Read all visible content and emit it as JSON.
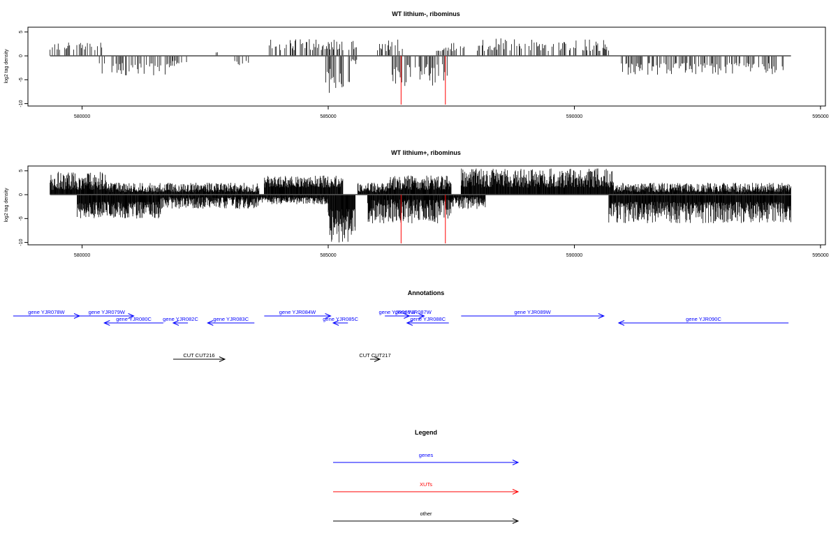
{
  "colors": {
    "gene": "#0000ff",
    "xut": "#ff0000",
    "other": "#000000",
    "bars": "#000000"
  },
  "chart_data": [
    {
      "type": "bar",
      "title": "WT lithium-, ribominus",
      "ylabel": "log2 tag density",
      "xlim": [
        578900,
        595100
      ],
      "ylim": [
        -10.5,
        6
      ],
      "xticks": [
        580000,
        585000,
        590000,
        595000
      ],
      "yticks": [
        5,
        0,
        -5,
        -10
      ],
      "xut_positions": [
        586480,
        587380
      ],
      "series": [
        {
          "strand": "plus",
          "density": "low",
          "regions": [
            [
              579350,
              580400,
              1.2,
              2.8
            ],
            [
              582700,
              582750,
              0.5,
              1.0
            ],
            [
              583800,
              585600,
              1.2,
              3.5
            ],
            [
              586000,
              586600,
              1.0,
              3.5
            ],
            [
              587200,
              587800,
              1.0,
              3.0
            ],
            [
              588000,
              590700,
              1.0,
              3.8
            ]
          ]
        },
        {
          "strand": "minus",
          "density": "low",
          "regions": [
            [
              580350,
              581800,
              1.5,
              4.2
            ],
            [
              581800,
              582200,
              1.0,
              2.5
            ],
            [
              583100,
              583400,
              1.0,
              2.0
            ],
            [
              584950,
              585450,
              2.5,
              7.8
            ],
            [
              585450,
              585600,
              0.5,
              2.0
            ],
            [
              586300,
              587450,
              1.5,
              6.5
            ],
            [
              590850,
              594300,
              1.5,
              4.0
            ]
          ]
        }
      ]
    },
    {
      "type": "bar",
      "title": "WT lithium+, ribominus",
      "ylabel": "log2 tag density",
      "xlim": [
        578900,
        595100
      ],
      "ylim": [
        -10.5,
        6
      ],
      "xticks": [
        580000,
        585000,
        590000,
        595000
      ],
      "yticks": [
        5,
        0,
        -5,
        -10
      ],
      "xut_positions": [
        586480,
        587380
      ],
      "series": [
        {
          "strand": "plus",
          "density": "high",
          "regions": [
            [
              579350,
              580500,
              1.0,
              4.8
            ],
            [
              580500,
              583600,
              0.5,
              2.5
            ],
            [
              583700,
              585300,
              1.5,
              4.0
            ],
            [
              585600,
              586200,
              0.5,
              2.5
            ],
            [
              586200,
              587500,
              1.0,
              4.0
            ],
            [
              587700,
              590800,
              1.5,
              5.5
            ],
            [
              590800,
              594400,
              0.5,
              2.5
            ]
          ]
        },
        {
          "strand": "minus",
          "density": "high",
          "regions": [
            [
              579900,
              581600,
              1.5,
              5.0
            ],
            [
              581600,
              583600,
              0.5,
              3.0
            ],
            [
              583600,
              585000,
              0.5,
              2.0
            ],
            [
              585000,
              585550,
              3.0,
              10.0
            ],
            [
              585800,
              587500,
              1.0,
              6.0
            ],
            [
              587500,
              588200,
              0.5,
              3.0
            ],
            [
              590700,
              594400,
              1.5,
              6.0
            ]
          ]
        }
      ]
    }
  ],
  "annotations": {
    "title": "Annotations",
    "items": [
      {
        "label": "gene YJR078W",
        "start": 578600,
        "end": 579950,
        "track": 0,
        "kind": "gene",
        "dir": "right"
      },
      {
        "label": "gene YJR079W",
        "start": 579950,
        "end": 581050,
        "track": 0,
        "kind": "gene",
        "dir": "right"
      },
      {
        "label": "gene YJR080C",
        "start": 580450,
        "end": 581650,
        "track": 1,
        "kind": "gene",
        "dir": "left"
      },
      {
        "label": "gene YJR082C",
        "start": 581850,
        "end": 582150,
        "track": 1,
        "kind": "gene",
        "dir": "left"
      },
      {
        "label": "gene YJR083C",
        "start": 582550,
        "end": 583500,
        "track": 1,
        "kind": "gene",
        "dir": "left"
      },
      {
        "label": "gene YJR084W",
        "start": 583700,
        "end": 585050,
        "track": 0,
        "kind": "gene",
        "dir": "right"
      },
      {
        "label": "gene YJR085C",
        "start": 585100,
        "end": 585400,
        "track": 1,
        "kind": "gene",
        "dir": "left"
      },
      {
        "label": "gene YJR086W",
        "start": 586150,
        "end": 586650,
        "track": 0,
        "kind": "gene",
        "dir": "right"
      },
      {
        "label": "gene YJR087W",
        "start": 586500,
        "end": 586950,
        "track": 0,
        "kind": "gene",
        "dir": "right"
      },
      {
        "label": "gene YJR088C",
        "start": 586600,
        "end": 587450,
        "track": 1,
        "kind": "gene",
        "dir": "left"
      },
      {
        "label": "gene YJR089W",
        "start": 587700,
        "end": 590600,
        "track": 0,
        "kind": "gene",
        "dir": "right"
      },
      {
        "label": "gene YJR090C",
        "start": 590900,
        "end": 594350,
        "track": 1,
        "kind": "gene",
        "dir": "left"
      },
      {
        "label": "CUT CUT216",
        "start": 581850,
        "end": 582900,
        "track": 2,
        "kind": "other",
        "dir": "right"
      },
      {
        "label": "CUT CUT217",
        "start": 585850,
        "end": 586050,
        "track": 2,
        "kind": "other",
        "dir": "right"
      }
    ]
  },
  "legend": {
    "title": "Legend",
    "items": [
      {
        "label": "genes",
        "kind": "gene"
      },
      {
        "label": "XUTs",
        "kind": "xut"
      },
      {
        "label": "other",
        "kind": "other"
      }
    ]
  }
}
